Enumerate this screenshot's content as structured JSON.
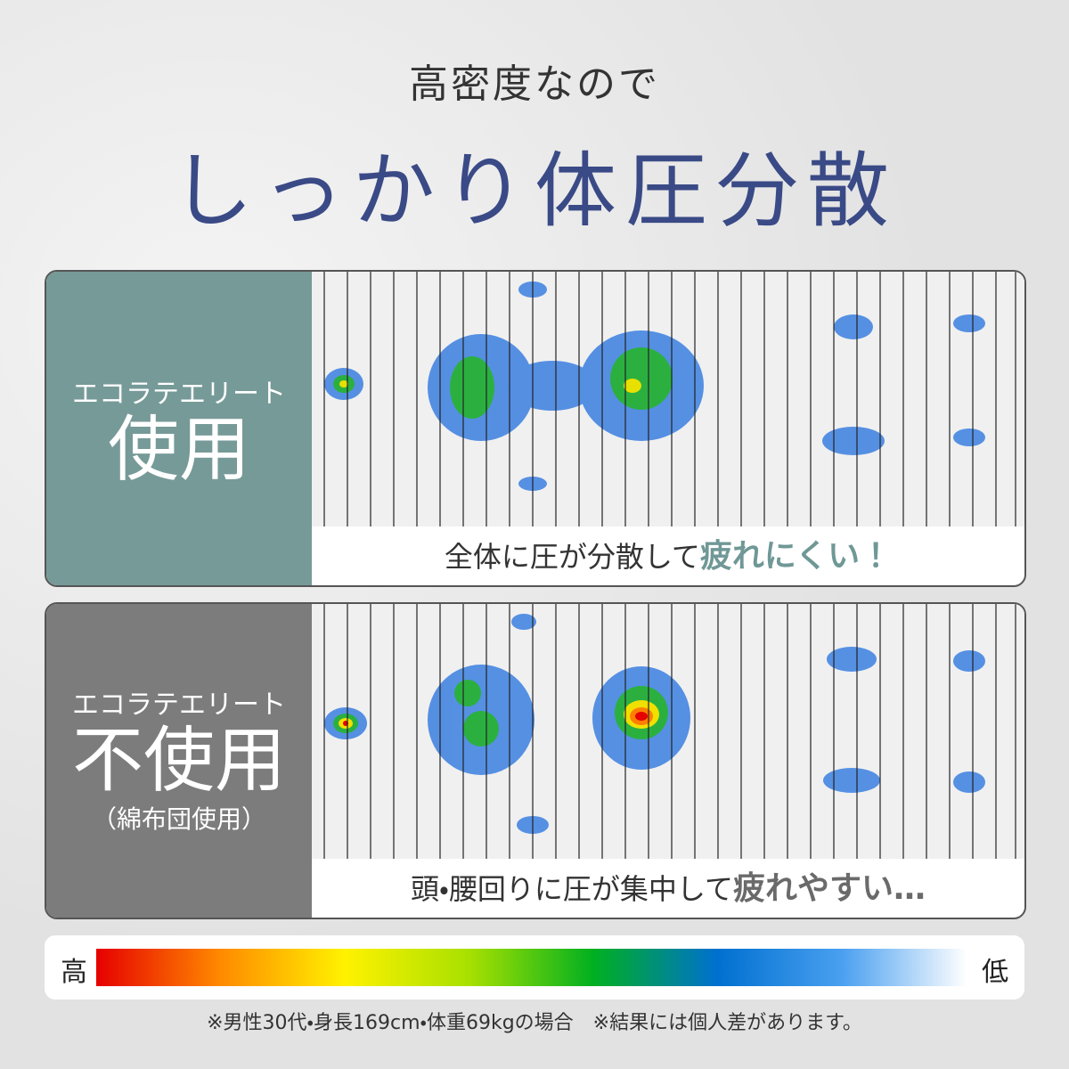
{
  "header": {
    "subtitle": "高密度なので",
    "title": "しっかり体圧分散"
  },
  "panels": [
    {
      "label": "エコラテエリート",
      "heading": "使用",
      "caption_plain": "全体に圧が分散して",
      "caption_emphasis": "疲れにくい！"
    },
    {
      "label": "エコラテエリート",
      "heading": "不使用",
      "note": "（綿布団使用）",
      "caption_plain": "頭・腰回りに圧が集中して",
      "caption_emphasis": "疲れやすい…"
    }
  ],
  "legend": {
    "high": "高",
    "low": "低"
  },
  "footnote": "※男性30代・身長169cm・体重69kgの場合　※結果には個人差があります。"
}
